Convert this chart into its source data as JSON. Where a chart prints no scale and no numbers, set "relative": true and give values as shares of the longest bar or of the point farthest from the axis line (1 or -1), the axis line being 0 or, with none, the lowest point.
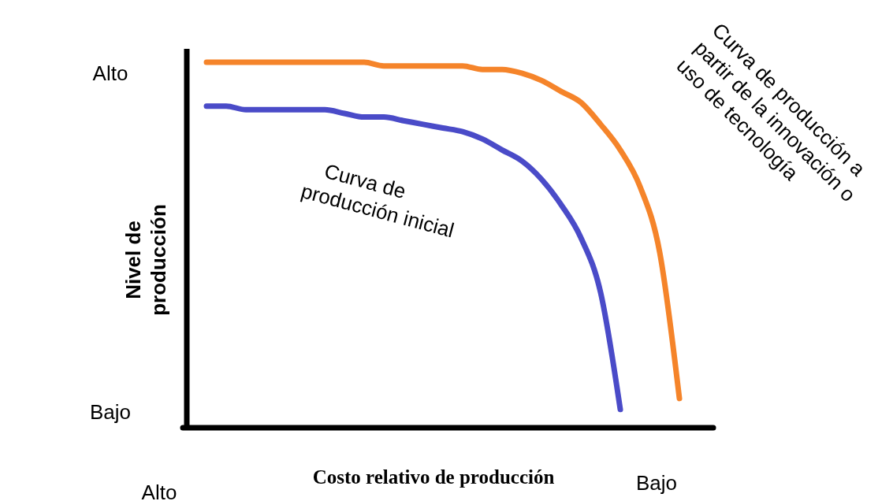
{
  "chart_data": {
    "type": "line",
    "relative": true,
    "xlabel": "Costo relativo de producción",
    "ylabel": "Nivel de producción",
    "categories": [
      null,
      null,
      null,
      null,
      null,
      null,
      null,
      null,
      null,
      null,
      null,
      null,
      null,
      null,
      null,
      null,
      null,
      null,
      null,
      null,
      null,
      null,
      null,
      null,
      null
    ],
    "series": [
      {
        "name": "Curva de producción inicial",
        "color": "#4a4bc8",
        "values": [
          0.88,
          0.88,
          0.87,
          0.87,
          0.87,
          0.87,
          0.87,
          0.86,
          0.85,
          0.85,
          0.84,
          0.83,
          0.82,
          0.81,
          0.79,
          0.76,
          0.73,
          0.68,
          0.61,
          0.52,
          0.37,
          0.05,
          null,
          null,
          null
        ]
      },
      {
        "name": "Curva de producción a partir de la innovación o uso de tecnología",
        "color": "#f5842a",
        "values": [
          1,
          1,
          1,
          1,
          1,
          1,
          1,
          1,
          1,
          0.99,
          0.99,
          0.99,
          0.99,
          0.99,
          0.98,
          0.98,
          0.97,
          0.95,
          0.92,
          0.89,
          0.83,
          0.76,
          0.66,
          0.48,
          0.08
        ]
      }
    ],
    "annotations": [
      "Alto",
      "Bajo",
      "Alto",
      "Bajo"
    ]
  }
}
